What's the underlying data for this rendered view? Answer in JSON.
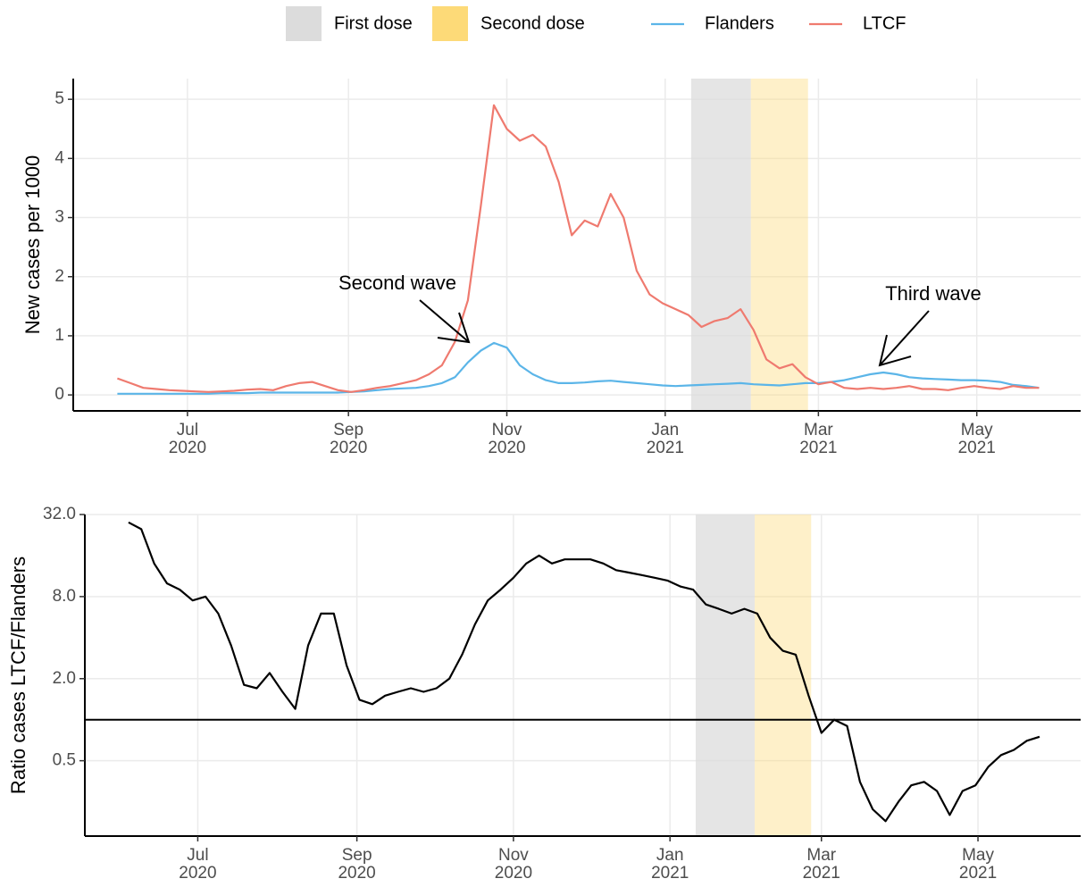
{
  "chart_data": [
    {
      "type": "line",
      "ylabel": "New cases per 1000",
      "annotations": [
        "Second wave",
        "Third wave"
      ],
      "x": [
        "2020-06-04",
        "2020-06-09",
        "2020-06-14",
        "2020-06-19",
        "2020-06-24",
        "2020-06-29",
        "2020-07-04",
        "2020-07-09",
        "2020-07-14",
        "2020-07-19",
        "2020-07-24",
        "2020-07-29",
        "2020-08-03",
        "2020-08-08",
        "2020-08-13",
        "2020-08-18",
        "2020-08-23",
        "2020-08-28",
        "2020-09-02",
        "2020-09-07",
        "2020-09-12",
        "2020-09-17",
        "2020-09-22",
        "2020-09-27",
        "2020-10-02",
        "2020-10-07",
        "2020-10-12",
        "2020-10-17",
        "2020-10-22",
        "2020-10-27",
        "2020-11-01",
        "2020-11-06",
        "2020-11-11",
        "2020-11-16",
        "2020-11-21",
        "2020-11-26",
        "2020-12-01",
        "2020-12-06",
        "2020-12-11",
        "2020-12-16",
        "2020-12-21",
        "2020-12-26",
        "2020-12-31",
        "2021-01-05",
        "2021-01-10",
        "2021-01-15",
        "2021-01-20",
        "2021-01-25",
        "2021-01-30",
        "2021-02-04",
        "2021-02-09",
        "2021-02-14",
        "2021-02-19",
        "2021-02-24",
        "2021-03-01",
        "2021-03-06",
        "2021-03-11",
        "2021-03-16",
        "2021-03-21",
        "2021-03-26",
        "2021-03-31",
        "2021-04-05",
        "2021-04-10",
        "2021-04-15",
        "2021-04-20",
        "2021-04-25",
        "2021-04-30",
        "2021-05-05",
        "2021-05-10",
        "2021-05-15",
        "2021-05-20",
        "2021-05-25"
      ],
      "series": [
        {
          "name": "Flanders",
          "color": "#5bb5e8",
          "values": [
            0.02,
            0.02,
            0.02,
            0.02,
            0.02,
            0.02,
            0.02,
            0.02,
            0.03,
            0.03,
            0.03,
            0.04,
            0.04,
            0.04,
            0.04,
            0.04,
            0.04,
            0.04,
            0.05,
            0.06,
            0.08,
            0.1,
            0.11,
            0.12,
            0.15,
            0.2,
            0.3,
            0.55,
            0.75,
            0.88,
            0.8,
            0.5,
            0.35,
            0.25,
            0.2,
            0.2,
            0.21,
            0.23,
            0.24,
            0.22,
            0.2,
            0.18,
            0.16,
            0.15,
            0.16,
            0.17,
            0.18,
            0.19,
            0.2,
            0.18,
            0.17,
            0.16,
            0.18,
            0.2,
            0.2,
            0.22,
            0.25,
            0.3,
            0.35,
            0.38,
            0.35,
            0.3,
            0.28,
            0.27,
            0.26,
            0.25,
            0.25,
            0.24,
            0.22,
            0.17,
            0.15,
            0.12
          ]
        },
        {
          "name": "LTCF",
          "color": "#ef7a6f",
          "values": [
            0.28,
            0.2,
            0.12,
            0.1,
            0.08,
            0.07,
            0.06,
            0.05,
            0.06,
            0.07,
            0.09,
            0.1,
            0.08,
            0.15,
            0.2,
            0.22,
            0.15,
            0.08,
            0.05,
            0.08,
            0.12,
            0.15,
            0.2,
            0.25,
            0.35,
            0.5,
            0.9,
            1.6,
            3.2,
            4.9,
            4.5,
            4.3,
            4.4,
            4.2,
            3.6,
            2.7,
            2.95,
            2.85,
            3.4,
            3.0,
            2.1,
            1.7,
            1.55,
            1.45,
            1.35,
            1.15,
            1.25,
            1.3,
            1.45,
            1.1,
            0.6,
            0.45,
            0.52,
            0.3,
            0.18,
            0.22,
            0.12,
            0.1,
            0.12,
            0.1,
            0.12,
            0.15,
            0.1,
            0.1,
            0.08,
            0.12,
            0.15,
            0.12,
            0.1,
            0.15,
            0.12,
            0.12
          ]
        }
      ],
      "shades": [
        {
          "name": "First dose",
          "start": "2021-01-11",
          "end": "2021-02-03",
          "color": "#dcdcdc"
        },
        {
          "name": "Second dose",
          "start": "2021-02-03",
          "end": "2021-02-25",
          "color": "#fdda78"
        }
      ],
      "xlim": [
        "2020-05-18",
        "2021-06-10"
      ],
      "xticks": [
        {
          "value": "2020-07-01",
          "label": "Jul\n2020"
        },
        {
          "value": "2020-09-01",
          "label": "Sep\n2020"
        },
        {
          "value": "2020-11-01",
          "label": "Nov\n2020"
        },
        {
          "value": "2021-01-01",
          "label": "Jan\n2021"
        },
        {
          "value": "2021-03-01",
          "label": "Mar\n2021"
        },
        {
          "value": "2021-05-01",
          "label": "May\n2021"
        }
      ],
      "ylim": [
        -0.27,
        5.35
      ],
      "yticks": [
        0,
        1,
        2,
        3,
        4,
        5
      ],
      "grid": true
    },
    {
      "type": "line",
      "ylabel": "Ratio cases LTCF/Flanders",
      "yscale": "log2",
      "reference_line": 1,
      "x": [
        "2020-06-04",
        "2020-06-09",
        "2020-06-14",
        "2020-06-19",
        "2020-06-24",
        "2020-06-29",
        "2020-07-04",
        "2020-07-09",
        "2020-07-14",
        "2020-07-19",
        "2020-07-24",
        "2020-07-29",
        "2020-08-03",
        "2020-08-08",
        "2020-08-13",
        "2020-08-18",
        "2020-08-23",
        "2020-08-28",
        "2020-09-02",
        "2020-09-07",
        "2020-09-12",
        "2020-09-17",
        "2020-09-22",
        "2020-09-27",
        "2020-10-02",
        "2020-10-07",
        "2020-10-12",
        "2020-10-17",
        "2020-10-22",
        "2020-10-27",
        "2020-11-01",
        "2020-11-06",
        "2020-11-11",
        "2020-11-16",
        "2020-11-21",
        "2020-11-26",
        "2020-12-01",
        "2020-12-06",
        "2020-12-11",
        "2020-12-16",
        "2020-12-21",
        "2020-12-26",
        "2020-12-31",
        "2021-01-05",
        "2021-01-10",
        "2021-01-15",
        "2021-01-20",
        "2021-01-25",
        "2021-01-30",
        "2021-02-04",
        "2021-02-09",
        "2021-02-14",
        "2021-02-19",
        "2021-02-24",
        "2021-03-01",
        "2021-03-06",
        "2021-03-11",
        "2021-03-16",
        "2021-03-21",
        "2021-03-26",
        "2021-03-31",
        "2021-04-05",
        "2021-04-10",
        "2021-04-15",
        "2021-04-20",
        "2021-04-25",
        "2021-04-30",
        "2021-05-05",
        "2021-05-10",
        "2021-05-15",
        "2021-05-20",
        "2021-05-25"
      ],
      "series": [
        {
          "color": "#000000",
          "values": [
            28,
            25,
            14,
            10,
            9,
            7.5,
            8,
            6,
            3.5,
            1.8,
            1.7,
            2.2,
            1.6,
            1.2,
            3.5,
            6,
            6,
            2.5,
            1.4,
            1.3,
            1.5,
            1.6,
            1.7,
            1.6,
            1.7,
            2,
            3,
            5,
            7.5,
            9,
            11,
            14,
            16,
            14,
            15,
            15,
            15,
            14,
            12.5,
            12,
            11.5,
            11,
            10.5,
            9.5,
            9,
            7,
            6.5,
            6,
            6.5,
            6,
            4,
            3.2,
            3,
            1.5,
            0.8,
            1,
            0.9,
            0.35,
            0.22,
            0.18,
            0.25,
            0.33,
            0.35,
            0.3,
            0.2,
            0.3,
            0.33,
            0.45,
            0.55,
            0.6,
            0.7,
            0.75
          ]
        }
      ],
      "shades": [
        {
          "start": "2021-01-11",
          "end": "2021-02-03",
          "color": "#dcdcdc"
        },
        {
          "start": "2021-02-03",
          "end": "2021-02-25",
          "color": "#fdda78"
        }
      ],
      "xlim": [
        "2020-05-18",
        "2021-06-10"
      ],
      "xticks": [
        {
          "value": "2020-07-01",
          "label": "Jul\n2020"
        },
        {
          "value": "2020-09-01",
          "label": "Sep\n2020"
        },
        {
          "value": "2020-11-01",
          "label": "Nov\n2020"
        },
        {
          "value": "2021-01-01",
          "label": "Jan\n2021"
        },
        {
          "value": "2021-03-01",
          "label": "Mar\n2021"
        },
        {
          "value": "2021-05-01",
          "label": "May\n2021"
        }
      ],
      "ylim": [
        0.14,
        32
      ],
      "yticks": [
        0.5,
        {
          "value": 2,
          "label": "2.0"
        },
        {
          "value": 8,
          "label": "8.0"
        },
        {
          "value": 32,
          "label": "32.0"
        }
      ],
      "grid": true
    }
  ]
}
